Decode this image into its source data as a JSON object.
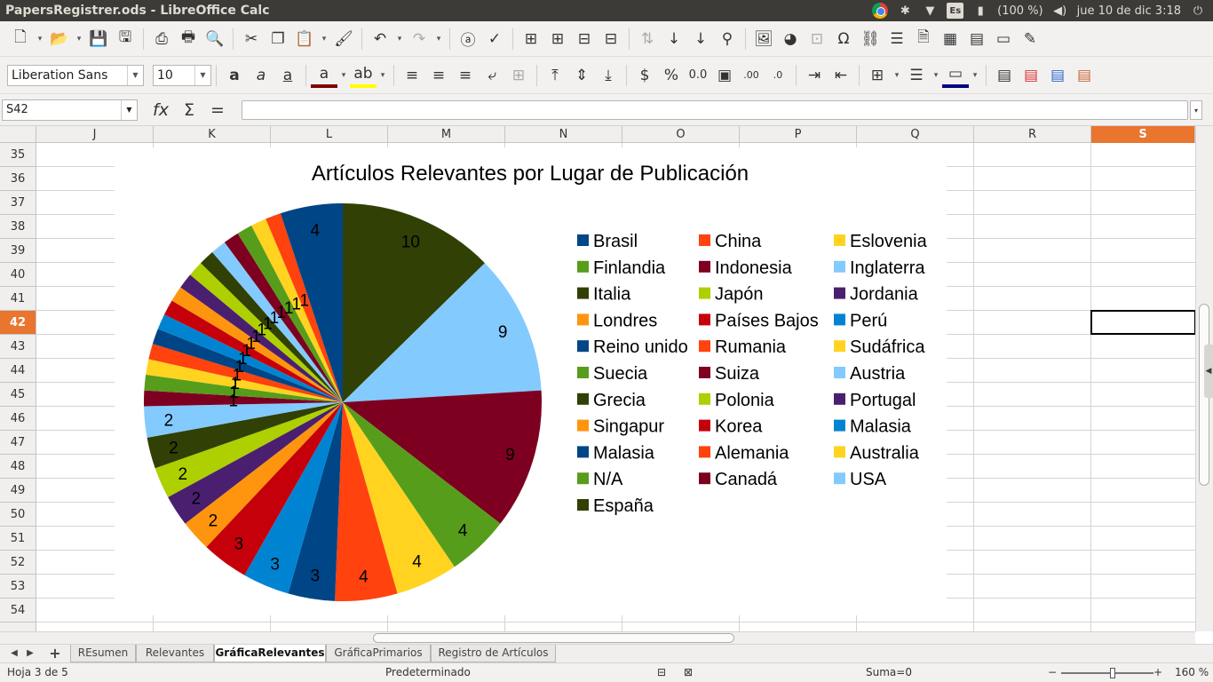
{
  "topbar": {
    "title": "PapersRegistrer.ods - LibreOffice Calc",
    "keyboard": "Es",
    "battery": "(100 %)",
    "datetime": "jue 10 de dic  3:18"
  },
  "toolbar2": {
    "font_name": "Liberation Sans",
    "font_size": "10"
  },
  "formula": {
    "cell_ref": "S42",
    "content": ""
  },
  "columns": [
    "J",
    "K",
    "L",
    "M",
    "N",
    "O",
    "P",
    "Q",
    "R",
    "S"
  ],
  "selected_column": "S",
  "rows": [
    "35",
    "36",
    "37",
    "38",
    "39",
    "40",
    "41",
    "42",
    "43",
    "44",
    "45",
    "46",
    "47",
    "48",
    "49",
    "50",
    "51",
    "52",
    "53",
    "54"
  ],
  "selected_row": "42",
  "chart_data": {
    "type": "pie",
    "title": "Artículos Relevantes por Lugar de Publicación",
    "slices": [
      {
        "label": "España",
        "value": 10,
        "color": "#314004"
      },
      {
        "label": "USA",
        "value": 9,
        "color": "#83caff"
      },
      {
        "label": "Canadá",
        "value": 9,
        "color": "#7e0021"
      },
      {
        "label": "N/A",
        "value": 4,
        "color": "#579d1c"
      },
      {
        "label": "Australia",
        "value": 4,
        "color": "#ffd320"
      },
      {
        "label": "Alemania",
        "value": 4,
        "color": "#ff420e"
      },
      {
        "label": "Malasia",
        "value": 3,
        "color": "#004586"
      },
      {
        "label": "Malasia",
        "value": 3,
        "color": "#0084d1"
      },
      {
        "label": "Korea",
        "value": 3,
        "color": "#c5000b"
      },
      {
        "label": "Singapur",
        "value": 2,
        "color": "#ff950e"
      },
      {
        "label": "Portugal",
        "value": 2,
        "color": "#4b1f6f"
      },
      {
        "label": "Polonia",
        "value": 2,
        "color": "#aecf00"
      },
      {
        "label": "Grecia",
        "value": 2,
        "color": "#314004"
      },
      {
        "label": "Austria",
        "value": 2,
        "color": "#83caff"
      },
      {
        "label": "Suiza",
        "value": 1,
        "color": "#7e0021"
      },
      {
        "label": "Suecia",
        "value": 1,
        "color": "#579d1c"
      },
      {
        "label": "Sudáfrica",
        "value": 1,
        "color": "#ffd320"
      },
      {
        "label": "Rumania",
        "value": 1,
        "color": "#ff420e"
      },
      {
        "label": "Reino unido",
        "value": 1,
        "color": "#004586"
      },
      {
        "label": "Perú",
        "value": 1,
        "color": "#0084d1"
      },
      {
        "label": "Países Bajos",
        "value": 1,
        "color": "#c5000b"
      },
      {
        "label": "Londres",
        "value": 1,
        "color": "#ff950e"
      },
      {
        "label": "Jordania",
        "value": 1,
        "color": "#4b1f6f"
      },
      {
        "label": "Japón",
        "value": 1,
        "color": "#aecf00"
      },
      {
        "label": "Italia",
        "value": 1,
        "color": "#314004"
      },
      {
        "label": "Inglaterra",
        "value": 1,
        "color": "#83caff"
      },
      {
        "label": "Indonesia",
        "value": 1,
        "color": "#7e0021"
      },
      {
        "label": "Finlandia",
        "value": 1,
        "color": "#579d1c"
      },
      {
        "label": "Eslovenia",
        "value": 1,
        "color": "#ffd320"
      },
      {
        "label": "China",
        "value": 1,
        "color": "#ff420e"
      },
      {
        "label": "Brasil",
        "value": 4,
        "color": "#004586"
      }
    ],
    "legend": [
      {
        "label": "Brasil",
        "color": "#004586"
      },
      {
        "label": "China",
        "color": "#ff420e"
      },
      {
        "label": "Eslovenia",
        "color": "#ffd320"
      },
      {
        "label": "Finlandia",
        "color": "#579d1c"
      },
      {
        "label": "Indonesia",
        "color": "#7e0021"
      },
      {
        "label": "Inglaterra",
        "color": "#83caff"
      },
      {
        "label": "Italia",
        "color": "#314004"
      },
      {
        "label": "Japón",
        "color": "#aecf00"
      },
      {
        "label": "Jordania",
        "color": "#4b1f6f"
      },
      {
        "label": "Londres",
        "color": "#ff950e"
      },
      {
        "label": "Países Bajos",
        "color": "#c5000b"
      },
      {
        "label": "Perú",
        "color": "#0084d1"
      },
      {
        "label": "Reino unido",
        "color": "#004586"
      },
      {
        "label": "Rumania",
        "color": "#ff420e"
      },
      {
        "label": "Sudáfrica",
        "color": "#ffd320"
      },
      {
        "label": "Suecia",
        "color": "#579d1c"
      },
      {
        "label": "Suiza",
        "color": "#7e0021"
      },
      {
        "label": "Austria",
        "color": "#83caff"
      },
      {
        "label": "Grecia",
        "color": "#314004"
      },
      {
        "label": "Polonia",
        "color": "#aecf00"
      },
      {
        "label": "Portugal",
        "color": "#4b1f6f"
      },
      {
        "label": "Singapur",
        "color": "#ff950e"
      },
      {
        "label": "Korea",
        "color": "#c5000b"
      },
      {
        "label": "Malasia",
        "color": "#0084d1"
      },
      {
        "label": "Malasia",
        "color": "#004586"
      },
      {
        "label": "Alemania",
        "color": "#ff420e"
      },
      {
        "label": "Australia",
        "color": "#ffd320"
      },
      {
        "label": "N/A",
        "color": "#579d1c"
      },
      {
        "label": "Canadá",
        "color": "#7e0021"
      },
      {
        "label": "USA",
        "color": "#83caff"
      },
      {
        "label": "España",
        "color": "#314004"
      }
    ],
    "legend_placement": "right"
  },
  "sheet_tabs": [
    "REsumen",
    "Relevantes",
    "GráficaRelevantes",
    "GráficaPrimarios",
    "Registro de Artículos"
  ],
  "active_tab": "GráficaRelevantes",
  "status": {
    "sheet": "Hoja 3 de 5",
    "style": "Predeterminado",
    "sum": "Suma=0",
    "zoom": "160 %"
  }
}
